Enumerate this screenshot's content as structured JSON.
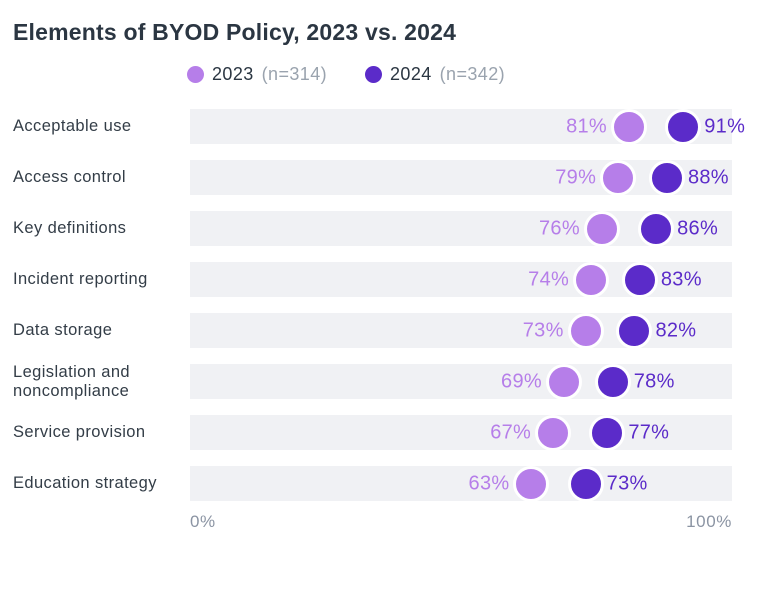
{
  "title": "Elements of BYOD Policy, 2023 vs. 2024",
  "legend": {
    "items": [
      {
        "label": "2023",
        "count": "(n=314)",
        "color": "#b67ee9"
      },
      {
        "label": "2024",
        "count": "(n=342)",
        "color": "#5b2bc9"
      }
    ]
  },
  "axis": {
    "min": "0%",
    "max": "100%"
  },
  "chart_data": {
    "type": "scatter",
    "subtype": "dumbbell-dot-plot",
    "title": "Elements of BYOD Policy, 2023 vs. 2024",
    "categories": [
      "Acceptable use",
      "Access control",
      "Key definitions",
      "Incident reporting",
      "Data storage",
      "Legislation and noncompliance",
      "Service provision",
      "Education strategy"
    ],
    "series": [
      {
        "name": "2023",
        "n": 314,
        "color": "#b67ee9",
        "values": [
          81,
          79,
          76,
          74,
          73,
          69,
          67,
          63
        ]
      },
      {
        "name": "2024",
        "n": 342,
        "color": "#5b2bc9",
        "values": [
          91,
          88,
          86,
          83,
          82,
          78,
          77,
          73
        ]
      }
    ],
    "value_suffix": "%",
    "xlim": [
      0,
      100
    ],
    "x_tick_labels": [
      "0%",
      "100%"
    ],
    "legend_position": "top",
    "grid": false
  },
  "colors": {
    "title": "#2b3642",
    "category_label": "#333d47",
    "axis_label": "#8b94a3",
    "legend_count": "#9aa3ae",
    "track": "#f0f1f4",
    "background": "#ffffff",
    "series_2023": "#b67ee9",
    "series_2024": "#5b2bc9"
  }
}
